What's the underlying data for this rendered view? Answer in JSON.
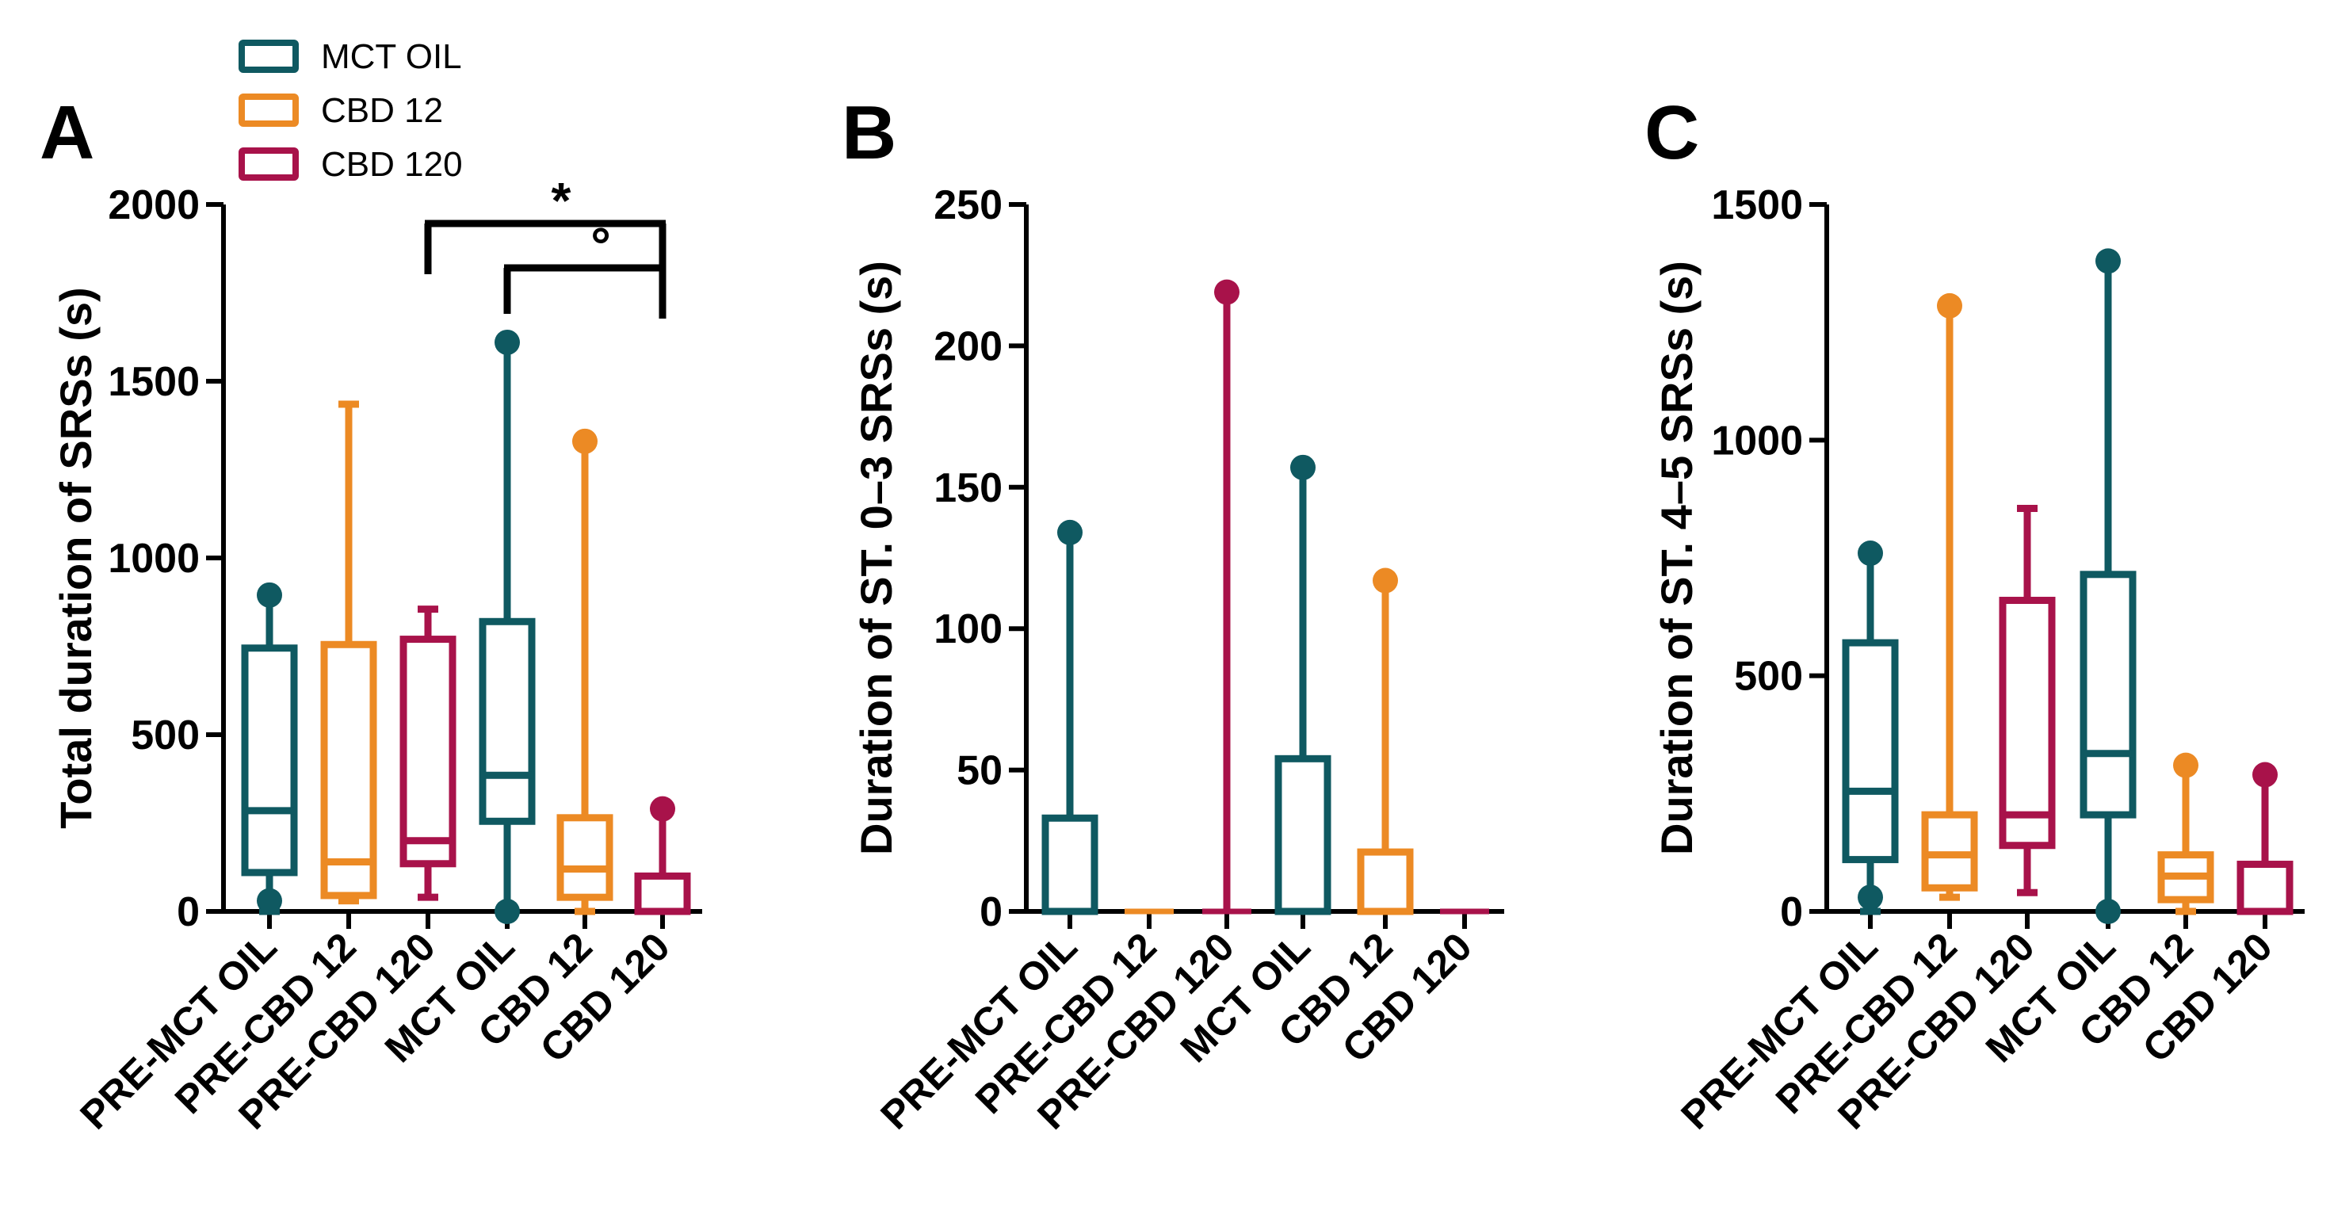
{
  "legend": [
    {
      "label": "MCT OIL",
      "color": "#0f5961"
    },
    {
      "label": "CBD 12",
      "color": "#ec8a24"
    },
    {
      "label": "CBD 120",
      "color": "#a8124a"
    }
  ],
  "chart_data": [
    {
      "type": "box",
      "panel": "A",
      "ylabel": "Total duration of SRSs (s)",
      "ylim": [
        0,
        2000
      ],
      "yticks": [
        0,
        500,
        1000,
        1500,
        2000
      ],
      "categories": [
        "PRE-MCT OIL",
        "PRE-CBD 12",
        "PRE-CBD 120",
        "MCT OIL",
        "CBD 12",
        "CBD 120"
      ],
      "colors": [
        "#0f5961",
        "#ec8a24",
        "#a8124a",
        "#0f5961",
        "#ec8a24",
        "#a8124a"
      ],
      "boxes": [
        {
          "min": 0,
          "q1": 110,
          "median": 285,
          "q3": 745,
          "max": 895,
          "outliers": [
            30,
            895
          ]
        },
        {
          "min": 30,
          "q1": 45,
          "median": 140,
          "q3": 755,
          "max": 1435,
          "outliers": []
        },
        {
          "min": 40,
          "q1": 135,
          "median": 200,
          "q3": 770,
          "max": 855,
          "outliers": []
        },
        {
          "min": 0,
          "q1": 255,
          "median": 385,
          "q3": 820,
          "max": 1610,
          "outliers": [
            0,
            1610
          ]
        },
        {
          "min": 0,
          "q1": 40,
          "median": 120,
          "q3": 265,
          "max": 1330,
          "outliers": [
            1330
          ]
        },
        {
          "min": 0,
          "q1": 0,
          "median": 0,
          "q3": 100,
          "max": 290,
          "outliers": [
            290
          ]
        }
      ],
      "significance": [
        {
          "from": 2,
          "to": 5,
          "label": "*"
        },
        {
          "from": 3,
          "to": 5,
          "label": "°"
        }
      ]
    },
    {
      "type": "box",
      "panel": "B",
      "ylabel": "Duration of ST. 0–3 SRSs (s)",
      "ylim": [
        0,
        250
      ],
      "yticks": [
        0,
        50,
        100,
        150,
        200,
        250
      ],
      "categories": [
        "PRE-MCT OIL",
        "PRE-CBD 12",
        "PRE-CBD 120",
        "MCT OIL",
        "CBD 12",
        "CBD 120"
      ],
      "colors": [
        "#0f5961",
        "#ec8a24",
        "#a8124a",
        "#0f5961",
        "#ec8a24",
        "#a8124a"
      ],
      "boxes": [
        {
          "min": 0,
          "q1": 0,
          "median": 0,
          "q3": 33,
          "max": 134,
          "outliers": [
            134
          ]
        },
        {
          "min": 0,
          "q1": 0,
          "median": 0,
          "q3": 0,
          "max": 0,
          "outliers": []
        },
        {
          "min": 0,
          "q1": 0,
          "median": 0,
          "q3": 0,
          "max": 219,
          "outliers": [
            219
          ]
        },
        {
          "min": 0,
          "q1": 0,
          "median": 0,
          "q3": 54,
          "max": 157,
          "outliers": [
            157
          ]
        },
        {
          "min": 0,
          "q1": 0,
          "median": 0,
          "q3": 21,
          "max": 117,
          "outliers": [
            117
          ]
        },
        {
          "min": 0,
          "q1": 0,
          "median": 0,
          "q3": 0,
          "max": 0,
          "outliers": []
        }
      ],
      "significance": []
    },
    {
      "type": "box",
      "panel": "C",
      "ylabel": "Duration of ST. 4–5 SRSs (s)",
      "ylim": [
        0,
        1500
      ],
      "yticks": [
        0,
        500,
        1000,
        1500
      ],
      "categories": [
        "PRE-MCT OIL",
        "PRE-CBD 12",
        "PRE-CBD 120",
        "MCT OIL",
        "CBD 12",
        "CBD 120"
      ],
      "colors": [
        "#0f5961",
        "#ec8a24",
        "#a8124a",
        "#0f5961",
        "#ec8a24",
        "#a8124a"
      ],
      "boxes": [
        {
          "min": 0,
          "q1": 110,
          "median": 255,
          "q3": 570,
          "max": 760,
          "outliers": [
            30,
            760
          ]
        },
        {
          "min": 30,
          "q1": 50,
          "median": 120,
          "q3": 205,
          "max": 1285,
          "outliers": [
            1285
          ]
        },
        {
          "min": 40,
          "q1": 140,
          "median": 205,
          "q3": 660,
          "max": 855,
          "outliers": []
        },
        {
          "min": 0,
          "q1": 205,
          "median": 335,
          "q3": 715,
          "max": 1380,
          "outliers": [
            0,
            1380
          ]
        },
        {
          "min": 0,
          "q1": 25,
          "median": 75,
          "q3": 120,
          "max": 310,
          "outliers": [
            310
          ]
        },
        {
          "min": 0,
          "q1": 0,
          "median": 0,
          "q3": 100,
          "max": 290,
          "outliers": [
            290
          ]
        }
      ],
      "significance": []
    }
  ]
}
